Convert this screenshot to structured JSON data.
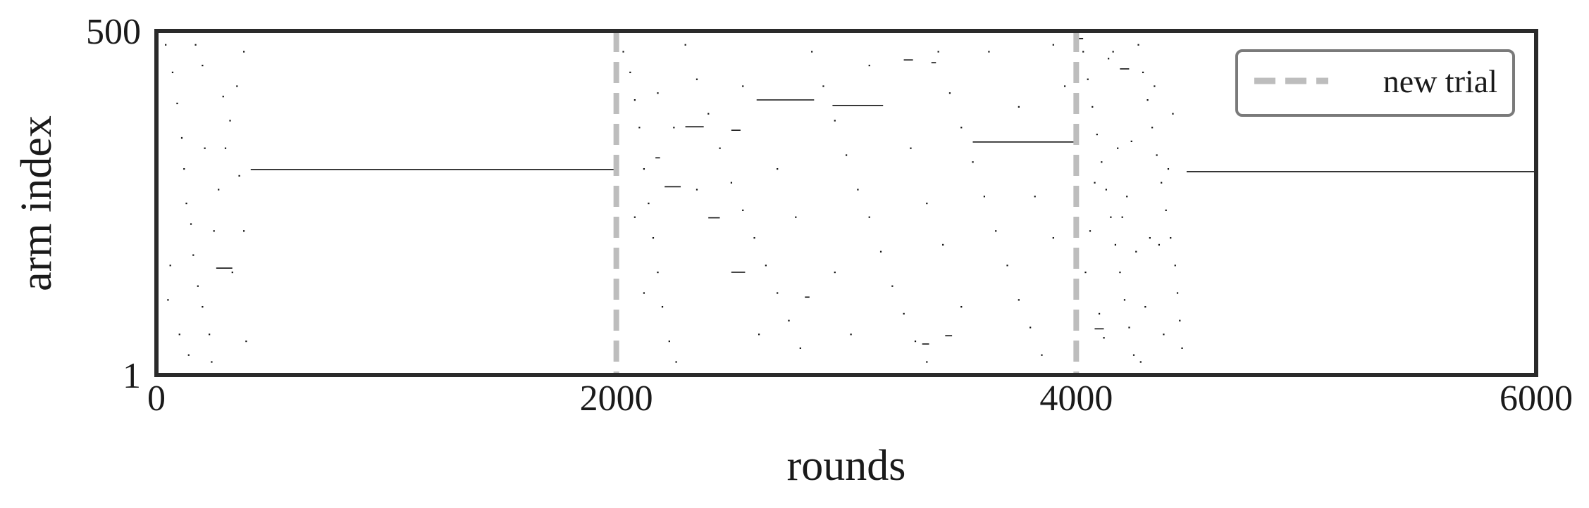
{
  "chart_data": {
    "type": "scatter",
    "title": "",
    "xlabel": "rounds",
    "ylabel": "arm index",
    "xlim": [
      0,
      6000
    ],
    "ylim": [
      1,
      500
    ],
    "x_ticks": [
      "0",
      "2000",
      "4000",
      "6000"
    ],
    "y_ticks": [
      "1",
      "500"
    ],
    "grid": false,
    "legend": {
      "placement": "top-right",
      "entries": [
        {
          "label": "new trial",
          "style": "dashed",
          "color": "#bdbdbd"
        }
      ]
    },
    "trial_boundaries": [
      2000,
      4000
    ],
    "colors": {
      "marks": "#111111",
      "trial_line": "#bdbdbd",
      "frame": "#2a2a2a",
      "legend_frame": "#7a7a7a"
    },
    "series": [
      {
        "segments": [
          {
            "x0": 410,
            "x1": 2000,
            "y": 299
          },
          {
            "x0": 2610,
            "x1": 2860,
            "y": 400
          },
          {
            "x0": 2940,
            "x1": 3160,
            "y": 392
          },
          {
            "x0": 3550,
            "x1": 4000,
            "y": 339
          },
          {
            "x0": 4480,
            "x1": 6000,
            "y": 296
          },
          {
            "x0": 260,
            "x1": 330,
            "y": 156
          },
          {
            "x0": 2210,
            "x1": 2280,
            "y": 274
          },
          {
            "x0": 2300,
            "x1": 2380,
            "y": 361
          },
          {
            "x0": 2500,
            "x1": 2560,
            "y": 150
          },
          {
            "x0": 2400,
            "x1": 2450,
            "y": 229
          },
          {
            "x0": 2500,
            "x1": 2540,
            "y": 356
          },
          {
            "x0": 2820,
            "x1": 2840,
            "y": 114
          },
          {
            "x0": 3330,
            "x1": 3360,
            "y": 46
          },
          {
            "x0": 3430,
            "x1": 3460,
            "y": 58
          },
          {
            "x0": 4080,
            "x1": 4120,
            "y": 68
          },
          {
            "x0": 4190,
            "x1": 4230,
            "y": 445
          },
          {
            "x0": 3250,
            "x1": 3290,
            "y": 458
          },
          {
            "x0": 3370,
            "x1": 3390,
            "y": 454
          },
          {
            "x0": 2170,
            "x1": 2190,
            "y": 316
          },
          {
            "x0": 4000,
            "x1": 4030,
            "y": 489
          }
        ],
        "points": [
          [
            40,
            480
          ],
          [
            70,
            440
          ],
          [
            90,
            395
          ],
          [
            110,
            345
          ],
          [
            120,
            300
          ],
          [
            130,
            250
          ],
          [
            150,
            220
          ],
          [
            160,
            175
          ],
          [
            180,
            130
          ],
          [
            200,
            100
          ],
          [
            230,
            60
          ],
          [
            240,
            20
          ],
          [
            250,
            210
          ],
          [
            270,
            270
          ],
          [
            300,
            330
          ],
          [
            320,
            370
          ],
          [
            350,
            420
          ],
          [
            380,
            470
          ],
          [
            60,
            160
          ],
          [
            100,
            60
          ],
          [
            140,
            30
          ],
          [
            200,
            450
          ],
          [
            330,
            150
          ],
          [
            380,
            210
          ],
          [
            390,
            50
          ],
          [
            170,
            480
          ],
          [
            210,
            330
          ],
          [
            290,
            405
          ],
          [
            50,
            110
          ],
          [
            360,
            290
          ],
          [
            2030,
            470
          ],
          [
            2060,
            440
          ],
          [
            2080,
            400
          ],
          [
            2100,
            360
          ],
          [
            2120,
            300
          ],
          [
            2140,
            250
          ],
          [
            2160,
            200
          ],
          [
            2180,
            150
          ],
          [
            2200,
            100
          ],
          [
            2230,
            50
          ],
          [
            2260,
            20
          ],
          [
            2300,
            480
          ],
          [
            2350,
            430
          ],
          [
            2400,
            380
          ],
          [
            2450,
            330
          ],
          [
            2500,
            280
          ],
          [
            2550,
            240
          ],
          [
            2600,
            200
          ],
          [
            2650,
            160
          ],
          [
            2700,
            120
          ],
          [
            2750,
            80
          ],
          [
            2800,
            40
          ],
          [
            2850,
            470
          ],
          [
            2900,
            420
          ],
          [
            2950,
            370
          ],
          [
            3000,
            320
          ],
          [
            3050,
            270
          ],
          [
            3100,
            230
          ],
          [
            3150,
            180
          ],
          [
            3200,
            130
          ],
          [
            3250,
            90
          ],
          [
            3300,
            50
          ],
          [
            3350,
            20
          ],
          [
            3400,
            470
          ],
          [
            3450,
            410
          ],
          [
            3500,
            360
          ],
          [
            3550,
            310
          ],
          [
            3600,
            260
          ],
          [
            3650,
            210
          ],
          [
            3700,
            160
          ],
          [
            3750,
            110
          ],
          [
            3800,
            70
          ],
          [
            3850,
            30
          ],
          [
            3900,
            480
          ],
          [
            3950,
            420
          ],
          [
            2120,
            120
          ],
          [
            2250,
            360
          ],
          [
            2550,
            420
          ],
          [
            2700,
            300
          ],
          [
            2950,
            150
          ],
          [
            3100,
            450
          ],
          [
            3350,
            250
          ],
          [
            3500,
            100
          ],
          [
            3750,
            390
          ],
          [
            3900,
            200
          ],
          [
            2080,
            230
          ],
          [
            2180,
            410
          ],
          [
            2350,
            270
          ],
          [
            2620,
            60
          ],
          [
            2780,
            230
          ],
          [
            3020,
            60
          ],
          [
            3280,
            330
          ],
          [
            3420,
            190
          ],
          [
            3620,
            470
          ],
          [
            3820,
            260
          ],
          [
            4030,
            470
          ],
          [
            4050,
            430
          ],
          [
            4070,
            390
          ],
          [
            4090,
            350
          ],
          [
            4110,
            310
          ],
          [
            4130,
            270
          ],
          [
            4150,
            230
          ],
          [
            4170,
            190
          ],
          [
            4190,
            150
          ],
          [
            4210,
            110
          ],
          [
            4230,
            70
          ],
          [
            4250,
            30
          ],
          [
            4270,
            480
          ],
          [
            4290,
            440
          ],
          [
            4310,
            400
          ],
          [
            4330,
            360
          ],
          [
            4350,
            320
          ],
          [
            4370,
            280
          ],
          [
            4390,
            240
          ],
          [
            4410,
            200
          ],
          [
            4430,
            160
          ],
          [
            4440,
            120
          ],
          [
            4450,
            80
          ],
          [
            4460,
            40
          ],
          [
            4060,
            210
          ],
          [
            4100,
            90
          ],
          [
            4140,
            460
          ],
          [
            4180,
            330
          ],
          [
            4220,
            260
          ],
          [
            4260,
            180
          ],
          [
            4300,
            100
          ],
          [
            4340,
            420
          ],
          [
            4380,
            60
          ],
          [
            4420,
            380
          ],
          [
            4040,
            150
          ],
          [
            4120,
            55
          ],
          [
            4200,
            230
          ],
          [
            4280,
            20
          ],
          [
            4360,
            190
          ],
          [
            4400,
            300
          ],
          [
            4160,
            470
          ],
          [
            4240,
            340
          ],
          [
            4320,
            200
          ],
          [
            4080,
            280
          ]
        ]
      }
    ]
  }
}
